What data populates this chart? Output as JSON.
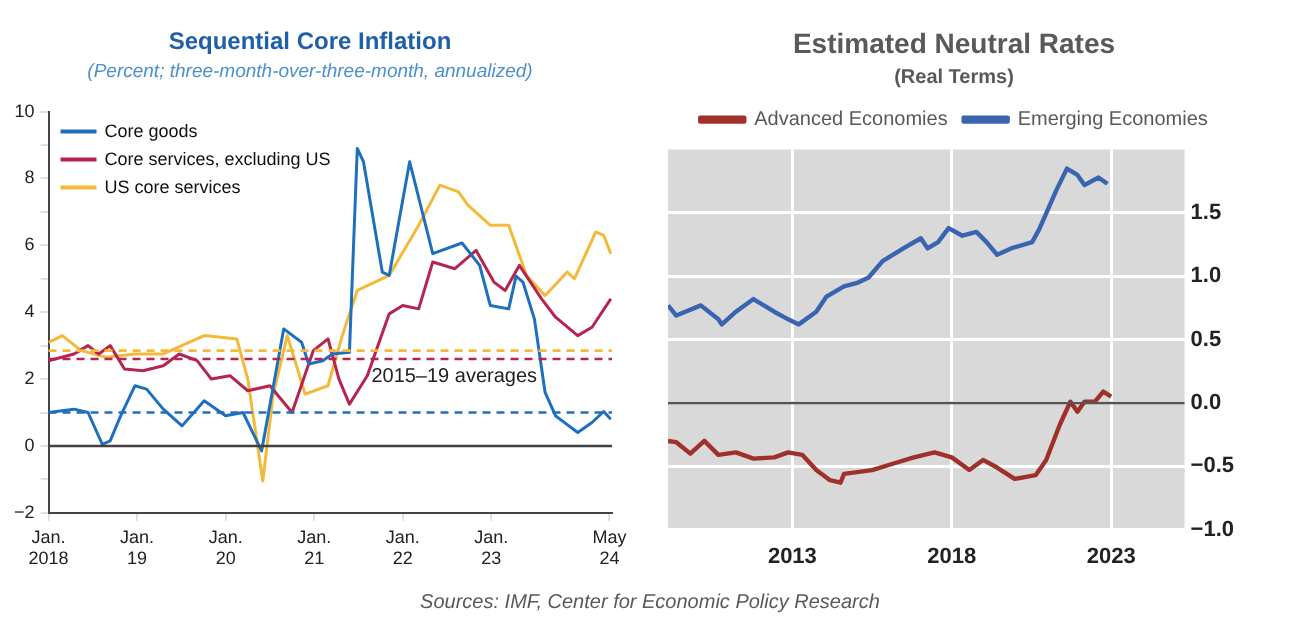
{
  "chart_data": [
    {
      "type": "line",
      "title": "Sequential Core Inflation",
      "subtitle": "(Percent; three-month-over-three-month, annualized)",
      "xlim": [
        "2018-01-01",
        "2024-05-12"
      ],
      "xticks": [
        {
          "value": "2018-01",
          "label": "Jan.\n2018"
        },
        {
          "value": "2019-01",
          "label": "Jan.\n19"
        },
        {
          "value": "2020-01",
          "label": "Jan.\n20"
        },
        {
          "value": "2021-01",
          "label": "Jan.\n21"
        },
        {
          "value": "2022-01",
          "label": "Jan.\n22"
        },
        {
          "value": "2023-01",
          "label": "Jan.\n23"
        },
        {
          "value": "2024-05",
          "label": "May\n24"
        }
      ],
      "ylim": [
        -2,
        10
      ],
      "yticks": [
        {
          "value": -2,
          "label": "−2"
        },
        {
          "value": -1,
          "label": null
        },
        0,
        {
          "value": 1,
          "label": null
        },
        2,
        {
          "value": 3,
          "label": null
        },
        4,
        {
          "value": 5,
          "label": null
        },
        6,
        {
          "value": 7,
          "label": null
        },
        8,
        {
          "value": 9,
          "label": null
        },
        10
      ],
      "grid": false,
      "legend": "top left",
      "marker": "none",
      "line_style": "solid",
      "series": [
        {
          "name": "Core goods",
          "color": "#1f6fbf",
          "x": [
            "2018-01-01",
            "2018-04-15",
            "2018-06-12",
            "2018-08-10",
            "2018-09-12",
            "2018-10-25",
            "2018-12-23",
            "2019-02-10",
            "2019-04-18",
            "2019-07-04",
            "2019-10-04",
            "2020-01-01",
            "2020-03-12",
            "2020-05-28",
            "2020-08-28",
            "2020-11-10",
            "2020-12-09",
            "2021-02-06",
            "2021-03-16",
            "2021-05-25",
            "2021-06-27",
            "2021-07-22",
            "2021-10-08",
            "2021-11-06",
            "2022-01-30",
            "2022-05-03",
            "2022-09-02",
            "2022-11-14",
            "2022-12-28",
            "2023-03-12",
            "2023-04-12",
            "2023-05-10",
            "2023-06-27",
            "2023-08-10",
            "2023-09-23",
            "2023-12-23",
            "2024-02-21",
            "2024-04-08",
            "2024-05-07"
          ],
          "values": [
            1.0,
            1.1,
            1.0,
            0.05,
            0.15,
            0.9,
            1.8,
            1.7,
            1.1,
            0.6,
            1.35,
            0.9,
            1.0,
            -0.15,
            3.5,
            3.1,
            2.45,
            2.55,
            2.75,
            2.8,
            8.9,
            8.5,
            5.2,
            5.1,
            8.5,
            5.75,
            6.07,
            5.4,
            4.2,
            4.1,
            5.08,
            4.9,
            3.8,
            1.6,
            0.9,
            0.4,
            0.7,
            1.03,
            0.8
          ]
        },
        {
          "name": "Core services, excluding US",
          "color": "#b5254f",
          "x": [
            "2018-01-01",
            "2018-04-15",
            "2018-06-12",
            "2018-07-26",
            "2018-09-12",
            "2018-11-10",
            "2019-01-26",
            "2019-04-18",
            "2019-06-23",
            "2019-09-05",
            "2019-11-03",
            "2020-01-19",
            "2020-04-01",
            "2020-07-01",
            "2020-10-01",
            "2020-12-28",
            "2021-02-28",
            "2021-04-12",
            "2021-05-25",
            "2021-08-07",
            "2021-11-06",
            "2022-01-01",
            "2022-03-06",
            "2022-05-03",
            "2022-08-03",
            "2022-10-30",
            "2023-01-12",
            "2023-02-28",
            "2023-04-26",
            "2023-07-26",
            "2023-09-23",
            "2023-12-23",
            "2024-02-21",
            "2024-05-07"
          ],
          "values": [
            2.55,
            2.75,
            3.0,
            2.75,
            3.0,
            2.3,
            2.25,
            2.4,
            2.75,
            2.55,
            2.0,
            2.1,
            1.65,
            1.8,
            1.0,
            2.85,
            3.2,
            2.0,
            1.25,
            2.1,
            3.95,
            4.2,
            4.1,
            5.5,
            5.3,
            5.85,
            4.9,
            4.65,
            5.4,
            4.4,
            3.85,
            3.3,
            3.55,
            4.4
          ]
        },
        {
          "name": "US core services",
          "color": "#f5b93a",
          "x": [
            "2018-01-01",
            "2018-02-28",
            "2018-05-14",
            "2018-08-28",
            "2018-12-23",
            "2019-04-18",
            "2019-10-04",
            "2020-02-17",
            "2020-04-01",
            "2020-06-02",
            "2020-07-15",
            "2020-09-12",
            "2020-11-25",
            "2021-02-28",
            "2021-04-26",
            "2021-06-27",
            "2021-11-06",
            "2022-03-06",
            "2022-06-02",
            "2022-08-18",
            "2022-09-27",
            "2022-12-28",
            "2023-03-12",
            "2023-05-25",
            "2023-08-10",
            "2023-11-10",
            "2023-12-09",
            "2024-03-06",
            "2024-04-08",
            "2024-05-07"
          ],
          "values": [
            3.1,
            3.3,
            2.85,
            2.65,
            2.75,
            2.75,
            3.3,
            3.2,
            2.0,
            -1.05,
            1.55,
            3.3,
            1.55,
            1.8,
            3.3,
            4.65,
            5.1,
            6.6,
            7.8,
            7.6,
            7.2,
            6.6,
            6.6,
            5.1,
            4.5,
            5.2,
            5.0,
            6.4,
            6.3,
            5.75
          ]
        }
      ],
      "ref_lines": [
        {
          "axis": "y",
          "value": 0,
          "color": "#404040",
          "line_style": "solid"
        },
        {
          "axis": "y",
          "value": 1.0,
          "color": "#1f6fbf",
          "line_style": "dashed"
        },
        {
          "axis": "y",
          "value": 2.6,
          "color": "#b5254f",
          "line_style": "dashed"
        },
        {
          "axis": "y",
          "value": 2.85,
          "color": "#f5b93a",
          "line_style": "dashed"
        }
      ],
      "annotations": [
        "2015–19 averages"
      ]
    },
    {
      "type": "line",
      "title": "Estimated Neutral Rates",
      "subtitle": "(Real Terms)",
      "xlim": [
        2009.1,
        2025.3
      ],
      "xticks": [
        2013,
        2018,
        2023
      ],
      "ylim": [
        -1,
        2
      ],
      "yticks": [
        {
          "value": -1,
          "label": "−1.0"
        },
        {
          "value": -0.5,
          "label": "−0.5"
        },
        {
          "value": 0,
          "label": "0.0"
        },
        {
          "value": 0.5,
          "label": "0.5"
        },
        {
          "value": 1,
          "label": "1.0"
        },
        {
          "value": 1.5,
          "label": "1.5"
        }
      ],
      "grid": true,
      "legend": "top",
      "marker": "none",
      "line_style": "solid",
      "series": [
        {
          "name": "Advanced Economies",
          "color": "#a0302a",
          "x": [
            2009.1,
            2009.36,
            2009.8,
            2010.24,
            2010.68,
            2011.23,
            2011.78,
            2012.43,
            2012.87,
            2013.31,
            2013.75,
            2014.18,
            2014.51,
            2014.62,
            2015.5,
            2016.15,
            2016.81,
            2017.46,
            2018.0,
            2018.55,
            2018.98,
            2019.42,
            2019.97,
            2020.63,
            2020.96,
            2021.39,
            2021.72,
            2021.94,
            2022.16,
            2022.49,
            2022.75,
            2023.0
          ],
          "values": [
            -0.3,
            -0.31,
            -0.4,
            -0.3,
            -0.41,
            -0.39,
            -0.44,
            -0.43,
            -0.39,
            -0.41,
            -0.53,
            -0.61,
            -0.63,
            -0.56,
            -0.53,
            -0.48,
            -0.43,
            -0.39,
            -0.43,
            -0.53,
            -0.45,
            -0.51,
            -0.6,
            -0.57,
            -0.45,
            -0.17,
            0.01,
            -0.07,
            0.01,
            0.01,
            0.09,
            0.05
          ]
        },
        {
          "name": "Emerging Economies",
          "color": "#3a64b0",
          "x": [
            2009.1,
            2009.36,
            2010.13,
            2010.68,
            2010.79,
            2011.23,
            2011.78,
            2012.43,
            2012.87,
            2013.2,
            2013.75,
            2014.07,
            2014.62,
            2015.06,
            2015.39,
            2015.83,
            2016.48,
            2017.03,
            2017.24,
            2017.57,
            2017.9,
            2018.33,
            2018.77,
            2019.09,
            2019.42,
            2019.86,
            2020.52,
            2020.74,
            2021.28,
            2021.61,
            2021.94,
            2022.16,
            2022.6,
            2022.88
          ],
          "values": [
            0.77,
            0.69,
            0.77,
            0.66,
            0.62,
            0.72,
            0.82,
            0.72,
            0.66,
            0.62,
            0.72,
            0.84,
            0.92,
            0.95,
            0.99,
            1.12,
            1.22,
            1.3,
            1.22,
            1.27,
            1.38,
            1.32,
            1.35,
            1.27,
            1.17,
            1.22,
            1.27,
            1.37,
            1.68,
            1.85,
            1.8,
            1.72,
            1.78,
            1.73
          ]
        }
      ],
      "ref_lines": [
        {
          "axis": "y",
          "value": 0,
          "color": "#555555",
          "line_style": "solid"
        }
      ],
      "annotations": [
        "Sources: IMF, Center for Economic Policy Research"
      ]
    }
  ]
}
